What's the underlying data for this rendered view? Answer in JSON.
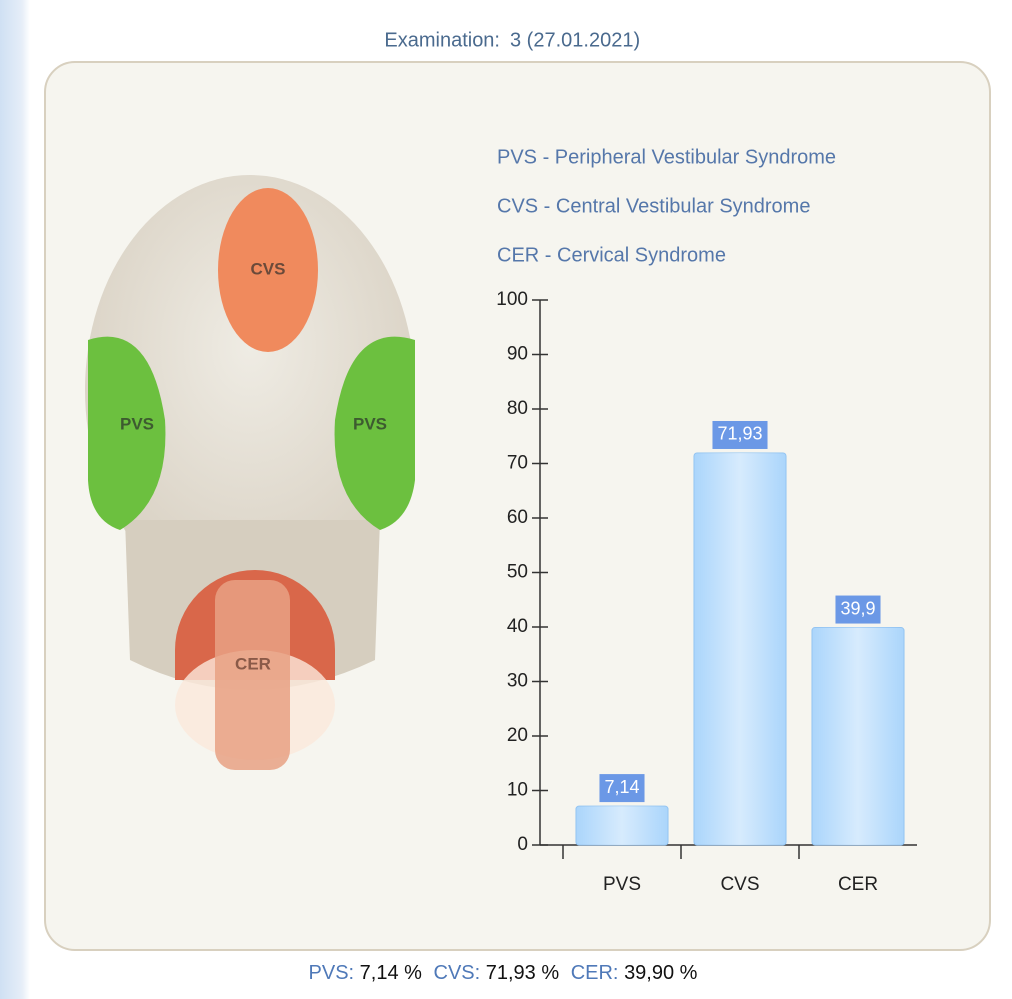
{
  "header": {
    "label": "Examination:",
    "value": "3 (27.01.2021)"
  },
  "legend": [
    "PVS - Peripheral Vestibular Syndrome",
    "CVS - Central Vestibular Syndrome",
    "CER - Cervical Syndrome"
  ],
  "diagram": {
    "labels": [
      "CVS",
      "PVS",
      "PVS",
      "CER"
    ]
  },
  "chart_data": {
    "type": "bar",
    "categories": [
      "PVS",
      "CVS",
      "CER"
    ],
    "values": [
      7.14,
      71.93,
      39.9
    ],
    "value_labels": [
      "7,14",
      "71,93",
      "39,9"
    ],
    "color": "#a6d3fb",
    "label_color": "#6b98e6",
    "ylim": [
      0,
      100
    ],
    "yticks": [
      0,
      10,
      20,
      30,
      40,
      50,
      60,
      70,
      80,
      90,
      100
    ]
  },
  "footer": [
    {
      "label": "PVS:",
      "value": "7,14 %"
    },
    {
      "label": "CVS:",
      "value": "71,93 %"
    },
    {
      "label": "CER:",
      "value": "39,90 %"
    }
  ]
}
